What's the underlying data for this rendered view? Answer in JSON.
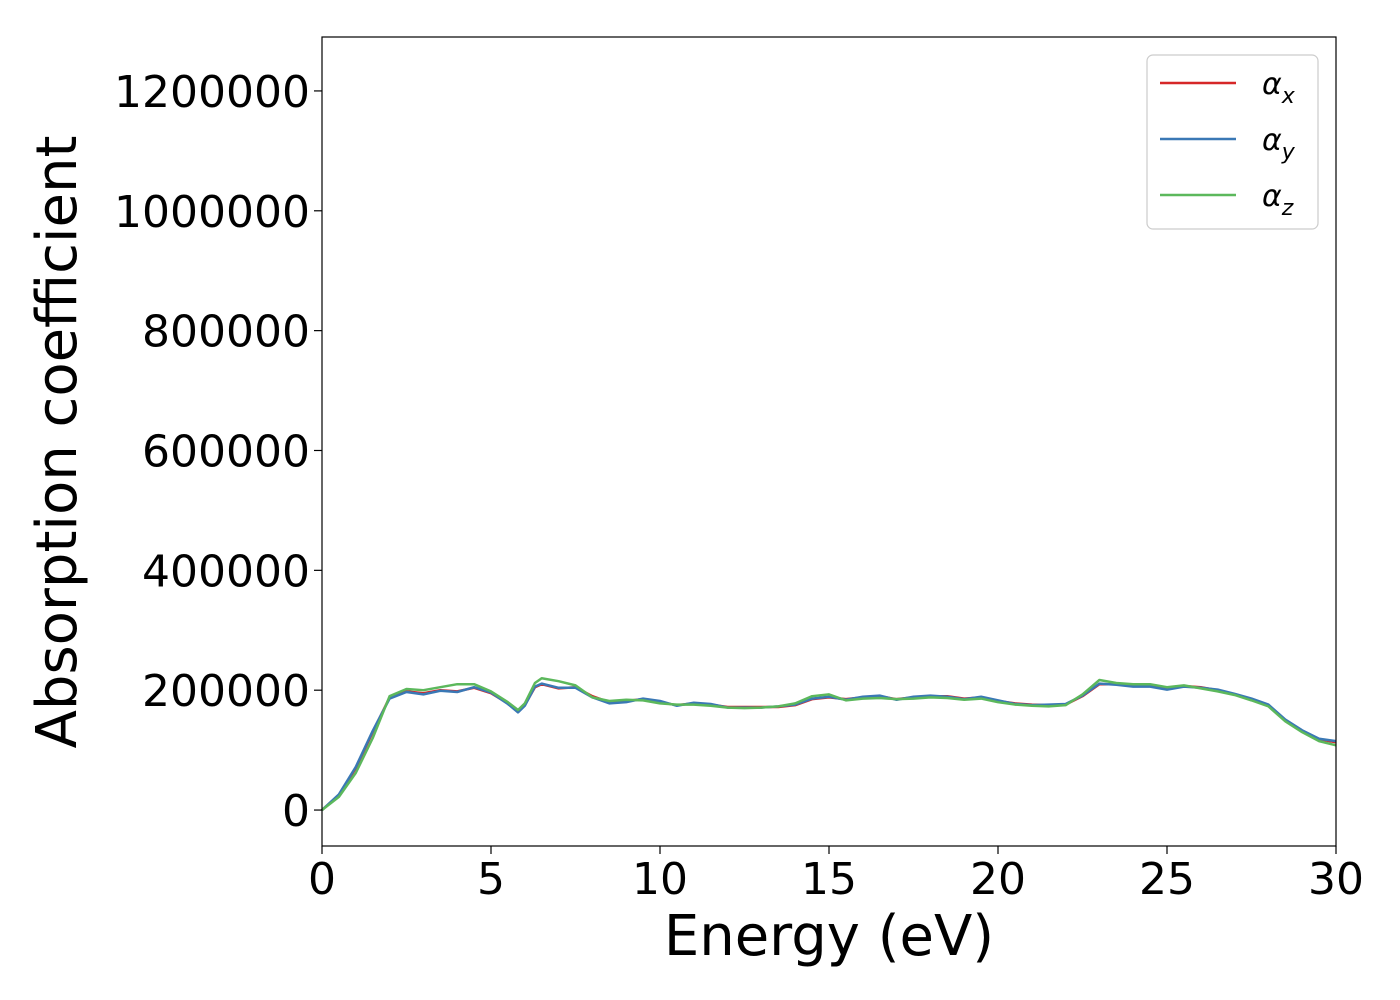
{
  "chart_data": {
    "type": "line",
    "xlabel": "Energy (eV)",
    "ylabel": "Absorption coefficient",
    "xlim": [
      0,
      30
    ],
    "ylim": [
      -60000,
      1290000
    ],
    "xticks": [
      0,
      5,
      10,
      15,
      20,
      25,
      30
    ],
    "yticks": [
      0,
      200000,
      400000,
      600000,
      800000,
      1000000,
      1200000
    ],
    "xtick_labels": [
      "0",
      "5",
      "10",
      "15",
      "20",
      "25",
      "30"
    ],
    "ytick_labels": [
      "0",
      "200000",
      "400000",
      "600000",
      "800000",
      "1000000",
      "1200000"
    ],
    "grid": false,
    "legend_position": "top-right",
    "series": [
      {
        "name": "αx",
        "label_main": "α",
        "label_sub": "x",
        "color": "#d62728",
        "x": [
          0,
          0.5,
          1,
          1.5,
          2,
          2.5,
          3,
          3.5,
          4,
          4.5,
          5,
          5.5,
          5.8,
          6,
          6.3,
          6.5,
          7,
          7.5,
          8,
          8.5,
          9,
          9.5,
          10,
          10.5,
          11,
          11.5,
          12,
          12.5,
          13,
          13.5,
          14,
          14.5,
          15,
          15.5,
          16,
          16.5,
          17,
          17.5,
          18,
          18.5,
          19,
          19.5,
          20,
          20.5,
          21,
          21.5,
          22,
          22.5,
          23,
          23.5,
          24,
          24.5,
          25,
          25.5,
          26,
          26.5,
          27,
          27.5,
          28,
          28.5,
          29,
          29.5,
          30
        ],
        "y": [
          0,
          25000,
          70000,
          130000,
          188000,
          198000,
          195000,
          200000,
          198000,
          204000,
          195000,
          178000,
          165000,
          175000,
          205000,
          210000,
          203000,
          205000,
          190000,
          180000,
          182000,
          185000,
          180000,
          175000,
          178000,
          176000,
          172000,
          172000,
          172000,
          172000,
          175000,
          185000,
          188000,
          185000,
          188000,
          190000,
          185000,
          188000,
          190000,
          190000,
          186000,
          188000,
          182000,
          178000,
          176000,
          175000,
          176000,
          190000,
          210000,
          210000,
          207000,
          207000,
          202000,
          207000,
          205000,
          200000,
          193000,
          185000,
          175000,
          150000,
          132000,
          118000,
          113000
        ]
      },
      {
        "name": "αy",
        "label_main": "α",
        "label_sub": "y",
        "color": "#3a78b5",
        "x": [
          0,
          0.5,
          1,
          1.5,
          2,
          2.5,
          3,
          3.5,
          4,
          4.5,
          5,
          5.5,
          5.8,
          6,
          6.3,
          6.5,
          7,
          7.5,
          8,
          8.5,
          9,
          9.5,
          10,
          10.5,
          11,
          11.5,
          12,
          12.5,
          13,
          13.5,
          14,
          14.5,
          15,
          15.5,
          16,
          16.5,
          17,
          17.5,
          18,
          18.5,
          19,
          19.5,
          20,
          20.5,
          21,
          21.5,
          22,
          22.5,
          23,
          23.5,
          24,
          24.5,
          25,
          25.5,
          26,
          26.5,
          27,
          27.5,
          28,
          28.5,
          29,
          29.5,
          30
        ],
        "y": [
          0,
          26000,
          72000,
          132000,
          186000,
          197000,
          193000,
          199000,
          197000,
          205000,
          196000,
          177000,
          163000,
          174000,
          206000,
          211000,
          204000,
          204000,
          188000,
          178000,
          180000,
          186000,
          182000,
          174000,
          179000,
          177000,
          171000,
          171000,
          171000,
          173000,
          176000,
          186000,
          189000,
          184000,
          189000,
          191000,
          184000,
          189000,
          191000,
          189000,
          185000,
          189000,
          183000,
          177000,
          175000,
          176000,
          177000,
          191000,
          211000,
          209000,
          206000,
          206000,
          201000,
          206000,
          204000,
          201000,
          194000,
          186000,
          176000,
          151000,
          133000,
          119000,
          115000
        ]
      },
      {
        "name": "αz",
        "label_main": "α",
        "label_sub": "z",
        "color": "#5cb85c",
        "x": [
          0,
          0.5,
          1,
          1.5,
          2,
          2.5,
          3,
          3.5,
          4,
          4.5,
          5,
          5.5,
          5.8,
          6,
          6.3,
          6.5,
          7,
          7.5,
          8,
          8.5,
          9,
          9.5,
          10,
          10.5,
          11,
          11.5,
          12,
          12.5,
          13,
          13.5,
          14,
          14.5,
          15,
          15.5,
          16,
          16.5,
          17,
          17.5,
          18,
          18.5,
          19,
          19.5,
          20,
          20.5,
          21,
          21.5,
          22,
          22.5,
          23,
          23.5,
          24,
          24.5,
          25,
          25.5,
          26,
          26.5,
          27,
          27.5,
          28,
          28.5,
          29,
          29.5,
          30
        ],
        "y": [
          0,
          22000,
          62000,
          120000,
          190000,
          202000,
          200000,
          205000,
          210000,
          210000,
          198000,
          180000,
          167000,
          178000,
          212000,
          220000,
          215000,
          208000,
          188000,
          182000,
          184000,
          183000,
          178000,
          176000,
          176000,
          174000,
          171000,
          170000,
          171000,
          173000,
          178000,
          190000,
          193000,
          183000,
          186000,
          187000,
          185000,
          186000,
          188000,
          187000,
          184000,
          186000,
          180000,
          176000,
          174000,
          173000,
          175000,
          193000,
          217000,
          212000,
          210000,
          210000,
          205000,
          208000,
          203000,
          198000,
          192000,
          183000,
          173000,
          148000,
          130000,
          115000,
          108000
        ]
      }
    ]
  }
}
